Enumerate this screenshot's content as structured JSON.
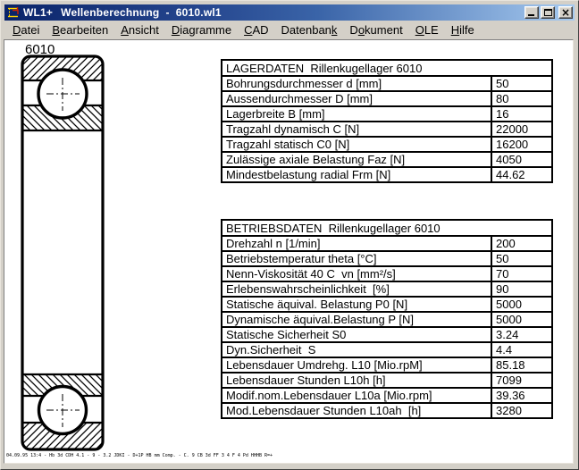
{
  "window": {
    "title_app": "WL1+",
    "title_doc": "Wellenberechnung  -  6010.wl1",
    "controls": {
      "minimize": "minimize-button",
      "maximize": "maximize-button",
      "close": "close-button"
    }
  },
  "colors": {
    "chrome": "#d4d0c8",
    "title_gradient_start": "#0a246a",
    "title_gradient_end": "#a6caf0",
    "drawing_ink": "#000000"
  },
  "menu": {
    "items": [
      {
        "pre": "",
        "accel": "D",
        "post": "atei"
      },
      {
        "pre": "",
        "accel": "B",
        "post": "earbeiten"
      },
      {
        "pre": "",
        "accel": "A",
        "post": "nsicht"
      },
      {
        "pre": "",
        "accel": "D",
        "post": "iagramme"
      },
      {
        "pre": "",
        "accel": "C",
        "post": "AD"
      },
      {
        "pre": "Datenban",
        "accel": "k",
        "post": ""
      },
      {
        "pre": "D",
        "accel": "o",
        "post": "kument"
      },
      {
        "pre": "",
        "accel": "O",
        "post": "LE"
      },
      {
        "pre": "",
        "accel": "H",
        "post": "ilfe"
      }
    ]
  },
  "drawing": {
    "label": "6010"
  },
  "tables": [
    {
      "header": "LAGERDATEN  Rillenkugellager 6010",
      "rows": [
        [
          "Bohrungsdurchmesser d [mm]",
          "50"
        ],
        [
          "Aussendurchmesser D [mm]",
          "80"
        ],
        [
          "Lagerbreite B [mm]",
          "16"
        ],
        [
          "Tragzahl dynamisch C [N]",
          "22000"
        ],
        [
          "Tragzahl statisch C0 [N]",
          "16200"
        ],
        [
          "Zulässige axiale Belastung Faz [N]",
          "4050"
        ],
        [
          "Mindestbelastung radial Frm [N]",
          "44.62"
        ]
      ]
    },
    {
      "header": "BETRIEBSDATEN  Rillenkugellager 6010",
      "rows": [
        [
          "Drehzahl n [1/min]",
          "200"
        ],
        [
          "Betriebstemperatur theta [°C]",
          "50"
        ],
        [
          "Nenn-Viskosität 40 C  vn [mm²/s]",
          "70"
        ],
        [
          "Erlebenswahrscheinlichkeit  [%]",
          "90"
        ],
        [
          "Statische äquival. Belastung P0 [N]",
          "5000"
        ],
        [
          "Dynamische äquival.Belastung P [N]",
          "5000"
        ],
        [
          "Statische Sicherheit S0",
          "3.24"
        ],
        [
          "Dyn.Sicherheit  S",
          "4.4"
        ],
        [
          "Lebensdauer Umdrehg. L10 [Mio.rpM]",
          "85.18"
        ],
        [
          "Lebensdauer Stunden L10h [h]",
          "7099"
        ],
        [
          "Modif.nom.Lebensdauer L10a [Mio.rpm]",
          "39.36"
        ],
        [
          "Mod.Lebensdauer Stunden L10ah  [h]",
          "3280"
        ]
      ]
    }
  ],
  "footer": {
    "text": "04.09.95 13:4 - Hb 3d CDH 4.1 - 9 - 3.2 JDKI - D+1P HB mm Comp. - C. 9 CB 3d FF 3 4 F 4 Pd HHHB R=+"
  }
}
